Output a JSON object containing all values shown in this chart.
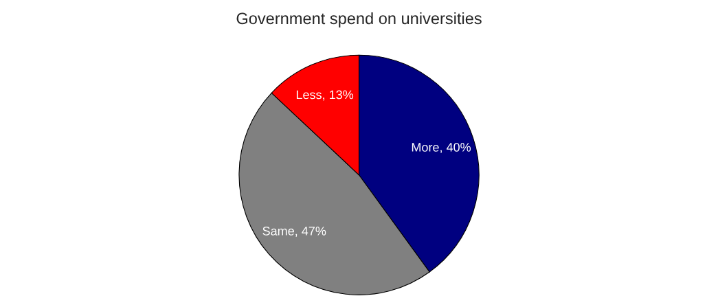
{
  "chart_data": {
    "type": "pie",
    "title": "Government spend on universities",
    "categories": [
      "More",
      "Same",
      "Less"
    ],
    "values": [
      40,
      47,
      13
    ],
    "value_labels": [
      "40%",
      "47%",
      "13%"
    ],
    "colors": [
      "#000080",
      "#808080",
      "#ff0000"
    ],
    "legend": false
  }
}
